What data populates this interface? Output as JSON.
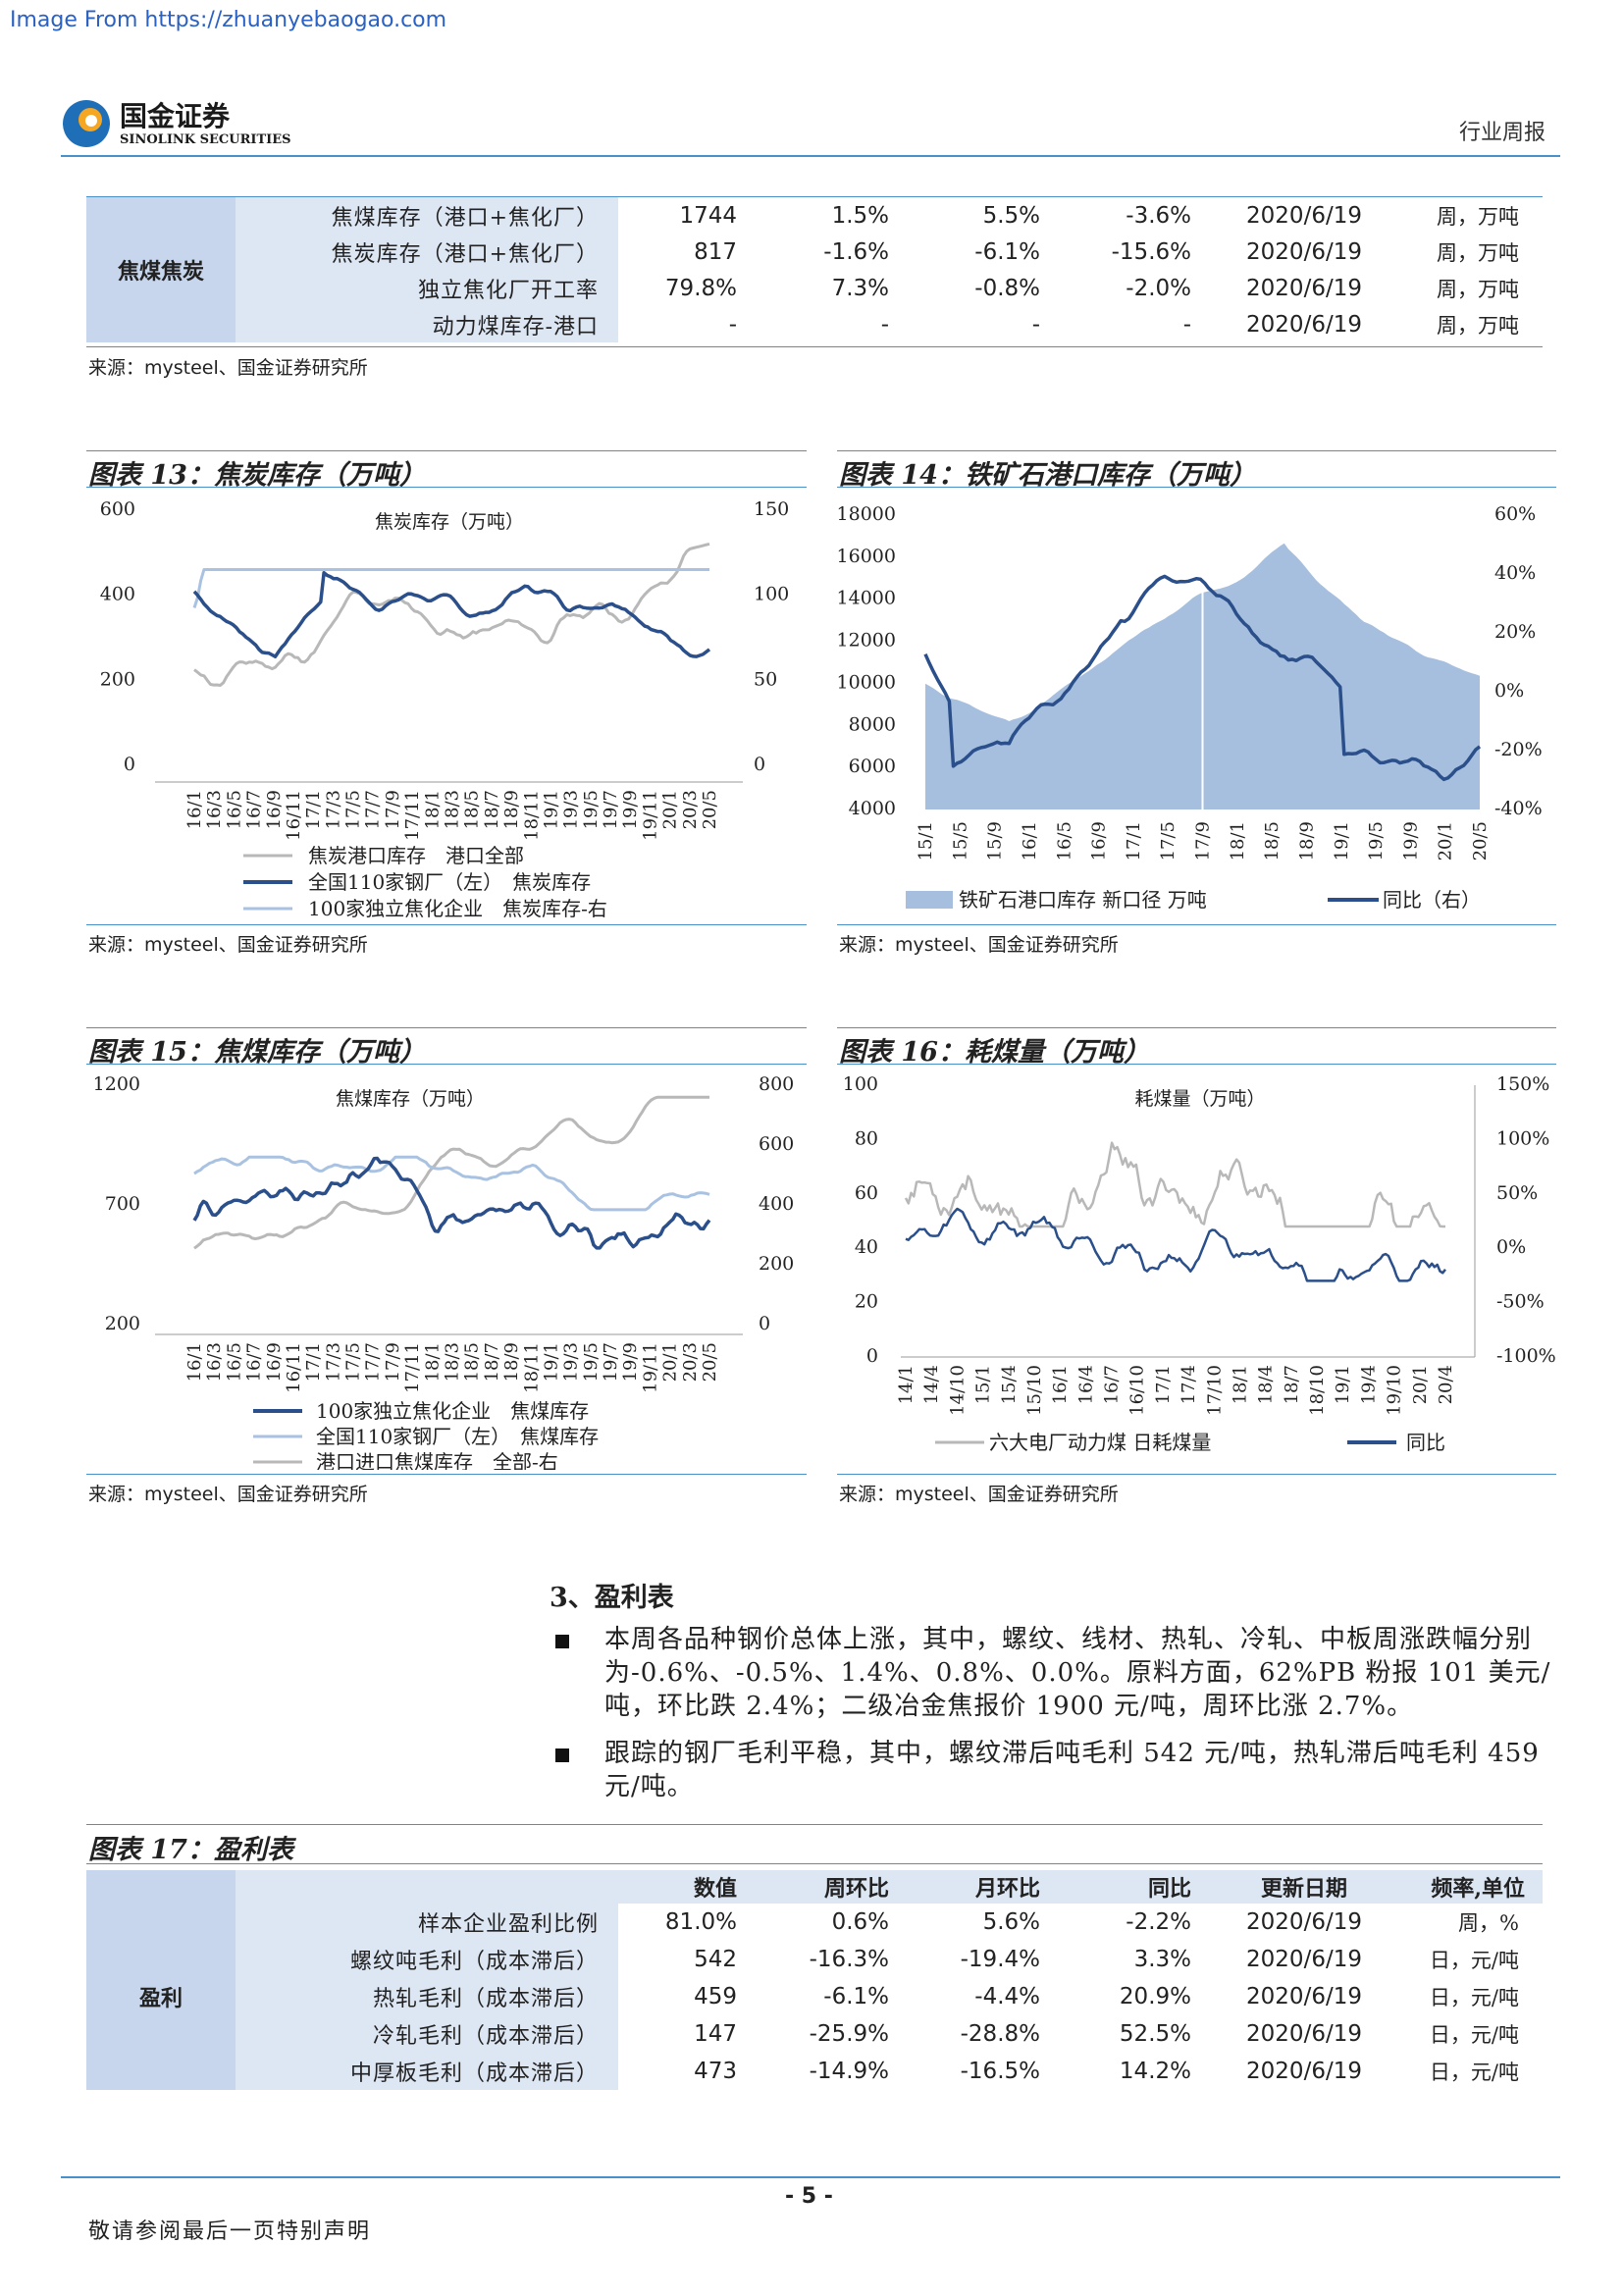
{
  "watermark": "Image From https://zhuanyebaogao.com",
  "logo": {
    "cn": "国金证券",
    "en": "SINOLINK SECURITIES"
  },
  "header_right": "行业周报",
  "top_table": {
    "section": "焦煤焦炭",
    "rows": [
      {
        "label": "焦煤库存（港口+焦化厂）",
        "value": "1744",
        "wow": "1.5%",
        "mom": "5.5%",
        "yoy": "-3.6%",
        "date": "2020/6/19",
        "freq": "周，万吨"
      },
      {
        "label": "焦炭库存（港口+焦化厂）",
        "value": "817",
        "wow": "-1.6%",
        "mom": "-6.1%",
        "yoy": "-15.6%",
        "date": "2020/6/19",
        "freq": "周，万吨"
      },
      {
        "label": "独立焦化厂开工率",
        "value": "79.8%",
        "wow": "7.3%",
        "mom": "-0.8%",
        "yoy": "-2.0%",
        "date": "2020/6/19",
        "freq": "周，万吨"
      },
      {
        "label": "动力煤库存-港口",
        "value": "-",
        "wow": "-",
        "mom": "-",
        "yoy": "-",
        "date": "2020/6/19",
        "freq": "周，万吨"
      }
    ]
  },
  "source_text": "来源：mysteel、国金证券研究所",
  "fig13": {
    "title": "图表 13：焦炭库存（万吨）",
    "inner_title": "焦炭库存（万吨）",
    "y_left": [
      "600",
      "400",
      "200",
      "0"
    ],
    "y_right": [
      "150",
      "100",
      "50",
      "0"
    ],
    "x_ticks": [
      "16/1",
      "16/3",
      "16/5",
      "16/7",
      "16/9",
      "16/11",
      "17/1",
      "17/3",
      "17/5",
      "17/7",
      "17/9",
      "17/11",
      "18/1",
      "18/3",
      "18/5",
      "18/7",
      "18/9",
      "18/11",
      "19/1",
      "19/3",
      "19/5",
      "19/7",
      "19/9",
      "19/11",
      "20/1",
      "20/3",
      "20/5"
    ],
    "legend": [
      "焦炭港口库存　港口全部",
      "全国110家钢厂（左）　焦炭库存",
      "100家独立焦化企业　焦炭库存-右"
    ]
  },
  "fig14": {
    "title": "图表 14：铁矿石港口库存（万吨）",
    "y_left": [
      "18000",
      "16000",
      "14000",
      "12000",
      "10000",
      "8000",
      "6000",
      "4000"
    ],
    "y_right": [
      "60%",
      "40%",
      "20%",
      "0%",
      "-20%",
      "-40%"
    ],
    "x_ticks": [
      "15/1",
      "15/5",
      "15/9",
      "16/1",
      "16/5",
      "16/9",
      "17/1",
      "17/5",
      "17/9",
      "18/1",
      "18/5",
      "18/9",
      "19/1",
      "19/5",
      "19/9",
      "20/1",
      "20/5"
    ],
    "legend": [
      "铁矿石港口库存 新口径 万吨",
      "同比（右）"
    ]
  },
  "fig15": {
    "title": "图表 15：焦煤库存（万吨）",
    "inner_title": "焦煤库存（万吨）",
    "y_left": [
      "1200",
      "700",
      "200"
    ],
    "y_right": [
      "800",
      "600",
      "400",
      "200",
      "0"
    ],
    "x_ticks": [
      "16/1",
      "16/3",
      "16/5",
      "16/7",
      "16/9",
      "16/11",
      "17/1",
      "17/3",
      "17/5",
      "17/7",
      "17/9",
      "17/11",
      "18/1",
      "18/3",
      "18/5",
      "18/7",
      "18/9",
      "18/11",
      "19/1",
      "19/3",
      "19/5",
      "19/7",
      "19/9",
      "19/11",
      "20/1",
      "20/3",
      "20/5"
    ],
    "legend": [
      "100家独立焦化企业　焦煤库存",
      "全国110家钢厂（左）　焦煤库存",
      "港口进口焦煤库存　全部-右"
    ]
  },
  "fig16": {
    "title": "图表 16：耗煤量（万吨）",
    "inner_title": "耗煤量（万吨）",
    "y_left": [
      "100",
      "80",
      "60",
      "40",
      "20",
      "0"
    ],
    "y_right": [
      "150%",
      "100%",
      "50%",
      "0%",
      "-50%",
      "-100%"
    ],
    "x_ticks": [
      "14/1",
      "14/4",
      "14/10",
      "15/1",
      "15/4",
      "15/10",
      "16/1",
      "16/4",
      "16/7",
      "16/10",
      "17/1",
      "17/4",
      "17/10",
      "18/1",
      "18/4",
      "18/7",
      "18/10",
      "19/1",
      "19/4",
      "19/10",
      "20/1",
      "20/4"
    ],
    "legend": [
      "六大电厂动力煤 日耗煤量",
      "同比"
    ]
  },
  "section3": {
    "heading": "3、盈利表",
    "bullets": [
      "本周各品种钢价总体上涨，其中，螺纹、线材、热轧、冷轧、中板周涨跌幅分别为-0.6%、-0.5%、1.4%、0.8%、0.0%。原料方面，62%PB 粉报 101 美元/吨，环比跌 2.4%；二级冶金焦报价 1900 元/吨，周环比涨 2.7%。",
      "跟踪的钢厂毛利平稳，其中，螺纹滞后吨毛利 542 元/吨，热轧滞后吨毛利 459 元/吨。"
    ]
  },
  "fig17": {
    "title": "图表 17：盈利表",
    "headers": [
      "数值",
      "周环比",
      "月环比",
      "同比",
      "更新日期",
      "频率,单位"
    ],
    "section": "盈利",
    "rows": [
      {
        "label": "样本企业盈利比例",
        "value": "81.0%",
        "wow": "0.6%",
        "mom": "5.6%",
        "yoy": "-2.2%",
        "date": "2020/6/19",
        "freq": "周，%"
      },
      {
        "label": "螺纹吨毛利（成本滞后）",
        "value": "542",
        "wow": "-16.3%",
        "mom": "-19.4%",
        "yoy": "3.3%",
        "date": "2020/6/19",
        "freq": "日，元/吨"
      },
      {
        "label": "热轧毛利（成本滞后）",
        "value": "459",
        "wow": "-6.1%",
        "mom": "-4.4%",
        "yoy": "20.9%",
        "date": "2020/6/19",
        "freq": "日，元/吨"
      },
      {
        "label": "冷轧毛利（成本滞后）",
        "value": "147",
        "wow": "-25.9%",
        "mom": "-28.8%",
        "yoy": "52.5%",
        "date": "2020/6/19",
        "freq": "日，元/吨"
      },
      {
        "label": "中厚板毛利（成本滞后）",
        "value": "473",
        "wow": "-14.9%",
        "mom": "-16.5%",
        "yoy": "14.2%",
        "date": "2020/6/19",
        "freq": "日，元/吨"
      }
    ]
  },
  "page_number": "- 5 -",
  "footer_note": "敬请参阅最后一页特别声明",
  "colors": {
    "dark_blue": "#2a4f8a",
    "light_blue": "#a9c2e1",
    "gray": "#b8b8b8",
    "accent": "#4a91c9",
    "fill14": "#a6bfdf"
  }
}
